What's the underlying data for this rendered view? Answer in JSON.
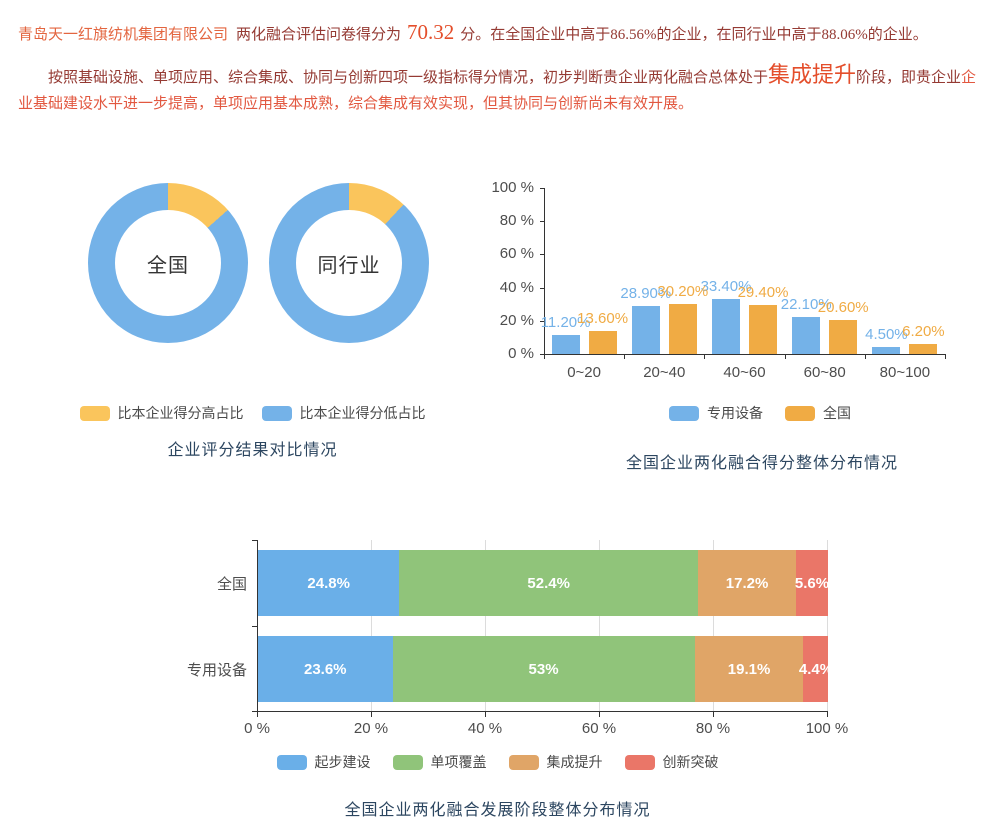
{
  "intro": {
    "company": "青岛天一红旗纺机集团有限公司",
    "mid": "两化融合评估问卷得分为",
    "score": "70.32",
    "tail": "分。在全国企业中高于86.56%的企业，在同行业中高于88.06%的企业。"
  },
  "assessment": {
    "lead": "按照基础设施、单项应用、综合集成、协同与创新四项一级指标得分情况，初步判断贵企业两化融合总体处于",
    "stage": "集成提升",
    "mid": "阶段，即贵企业",
    "tail": "企业基础建设水平进一步提高，单项应用基本成熟，综合集成有效实现，但其协同与创新尚未有效开展。"
  },
  "colors": {
    "blue": "#74b2e8",
    "yellow": "#fac55c",
    "orange": "#f0ab44",
    "stack_blue": "#6aafe8",
    "stack_green": "#90c47a",
    "stack_orange": "#e0a567",
    "stack_red": "#ea7668",
    "title_navy": "#2c4660",
    "axis_line": "#333333",
    "axis_text": "#4d4d4d",
    "dark_red": "#953a33",
    "light_red": "#e25840",
    "accent_red": "#e44e2b",
    "company_red": "#e3653f"
  },
  "chart_data": [
    {
      "type": "pie",
      "subtype": "donut-pair",
      "title": "企业评分结果对比情况",
      "legend": [
        {
          "label": "比本企业得分高占比",
          "color": "#fac55c"
        },
        {
          "label": "比本企业得分低占比",
          "color": "#74b2e8"
        }
      ],
      "donuts": [
        {
          "label": "全国",
          "higher_pct": 13.44,
          "lower_pct": 86.56
        },
        {
          "label": "同行业",
          "higher_pct": 11.94,
          "lower_pct": 88.06
        }
      ]
    },
    {
      "type": "bar",
      "title": "全国企业两化融合得分整体分布情况",
      "categories": [
        "0~20",
        "20~40",
        "40~60",
        "60~80",
        "80~100"
      ],
      "series": [
        {
          "name": "专用设备",
          "color": "#74b2e8",
          "values": [
            11.2,
            28.9,
            33.4,
            22.1,
            4.5
          ],
          "labels": [
            "11.20%",
            "28.90%",
            "33.40%",
            "22.10%",
            "4.50%"
          ]
        },
        {
          "name": "全国",
          "color": "#f0ab44",
          "values": [
            13.6,
            30.2,
            29.4,
            20.6,
            6.2
          ],
          "labels": [
            "13.60%",
            "30.20%",
            "29.40%",
            "20.60%",
            "6.20%"
          ]
        }
      ],
      "y_ticks": [
        "0 %",
        "20 %",
        "40 %",
        "60 %",
        "80 %",
        "100 %"
      ],
      "ylim": [
        0,
        100
      ],
      "grid": false,
      "legend_position": "bottom"
    },
    {
      "type": "bar",
      "subtype": "stacked-horizontal",
      "title": "全国企业两化融合发展阶段整体分布情况",
      "categories": [
        "全国",
        "专用设备"
      ],
      "series": [
        {
          "name": "起步建设",
          "color": "#6aafe8",
          "values": [
            24.8,
            23.6
          ],
          "labels": [
            "24.8%",
            "23.6%"
          ]
        },
        {
          "name": "单项覆盖",
          "color": "#90c47a",
          "values": [
            52.4,
            53
          ],
          "labels": [
            "52.4%",
            "53%"
          ]
        },
        {
          "name": "集成提升",
          "color": "#e0a567",
          "values": [
            17.2,
            19.1
          ],
          "labels": [
            "17.2%",
            "19.1%"
          ]
        },
        {
          "name": "创新突破",
          "color": "#ea7668",
          "values": [
            5.6,
            4.4
          ],
          "labels": [
            "5.6%",
            "4.4%"
          ]
        }
      ],
      "x_ticks": [
        "0 %",
        "20 %",
        "40 %",
        "60 %",
        "80 %",
        "100 %"
      ],
      "xlim": [
        0,
        100
      ],
      "grid": true,
      "legend_position": "bottom"
    }
  ]
}
